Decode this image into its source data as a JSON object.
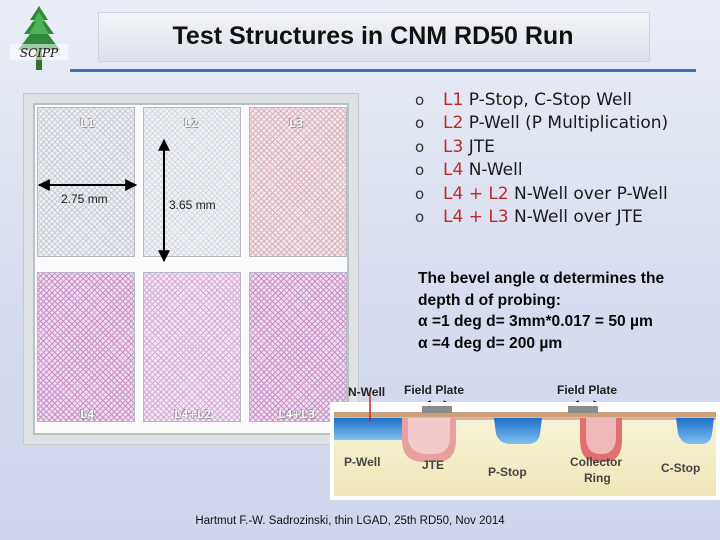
{
  "header": {
    "title": "Test Structures in CNM RD50 Run",
    "logo_text": "SCIPP"
  },
  "layout_image": {
    "labels_top": [
      "L1",
      "L2",
      "L3"
    ],
    "labels_bottom": [
      "L4",
      "L4+L2",
      "L4+L3"
    ],
    "dimension_width": "2.75 mm",
    "dimension_height": "3.65 mm"
  },
  "bullets": [
    {
      "mark": "o",
      "code": "L1",
      "text": " P-Stop, C-Stop Well"
    },
    {
      "mark": "o",
      "code": "L2",
      "text": " P-Well (P Multiplication)"
    },
    {
      "mark": "o",
      "code": "L3",
      "text": " JTE"
    },
    {
      "mark": "o",
      "code": "L4",
      "text": " N-Well"
    },
    {
      "mark": "o",
      "code": "L4 + L2",
      "text": " N-Well over P-Well"
    },
    {
      "mark": "o",
      "code": "L4 + L3",
      "text": " N-Well over JTE"
    }
  ],
  "bevel": {
    "line1": "The bevel angle α determines the",
    "line2": "depth d of probing:",
    "line3": "α =1 deg d= 3mm*0.017 = 50 µm",
    "line4": "α =4 deg d= 200 µm"
  },
  "diagram": {
    "nwell": "N-Well",
    "field_plate_1": "Field Plate",
    "field_plate_2": "Field Plate",
    "pwell": "P-Well",
    "jte": "JTE",
    "pstop": "P-Stop",
    "collector_line1": "Collector",
    "collector_line2": "Ring",
    "cstop": "C-Stop"
  },
  "footer": "Hartmut F.-W. Sadrozinski, thin LGAD, 25th RD50, Nov  2014",
  "colors": {
    "accent_rule": "#3f6fbf",
    "code_red": "#c0282a",
    "silicon": "#f6f2d2",
    "nwell": "#2c86d8",
    "pstop": "#e8a8a8",
    "metal": "#c9a27c"
  }
}
